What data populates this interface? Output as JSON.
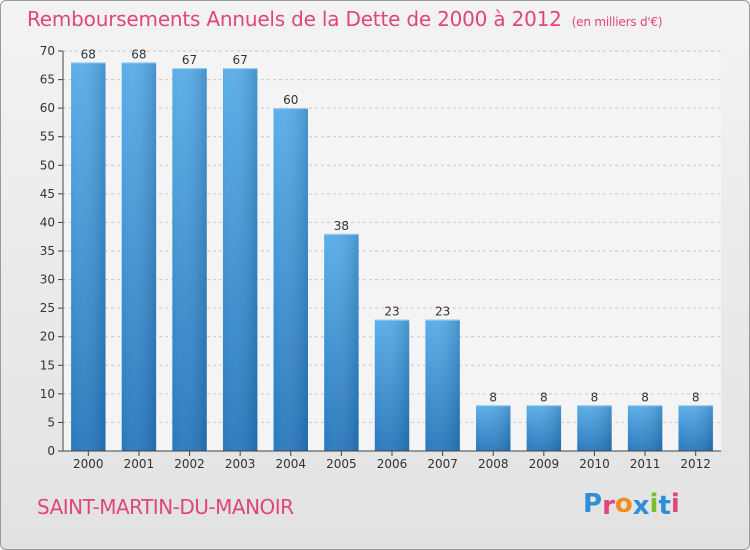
{
  "chart_data": {
    "type": "bar",
    "title": "Remboursements Annuels de la Dette de 2000 à 2012",
    "unit_label": "(en milliers d'€)",
    "categories": [
      "2000",
      "2001",
      "2002",
      "2003",
      "2004",
      "2005",
      "2006",
      "2007",
      "2008",
      "2009",
      "2010",
      "2011",
      "2012"
    ],
    "values": [
      68,
      68,
      67,
      67,
      60,
      38,
      23,
      23,
      8,
      8,
      8,
      8,
      8
    ],
    "ylim": [
      0,
      70
    ],
    "yticks": [
      0,
      5,
      10,
      15,
      20,
      25,
      30,
      35,
      40,
      45,
      50,
      55,
      60,
      65,
      70
    ],
    "grid": true,
    "bar_color": "#3d8fd1",
    "title_color": "#e0457b"
  },
  "footer": {
    "commune": "SAINT-MARTIN-DU-MANOIR",
    "logo": "Proxiti",
    "logo_colors": [
      "#2d8fd5",
      "#e0457b",
      "#f28c1e",
      "#2d8fd5",
      "#7bbf2a",
      "#2d8fd5",
      "#e0457b"
    ]
  }
}
